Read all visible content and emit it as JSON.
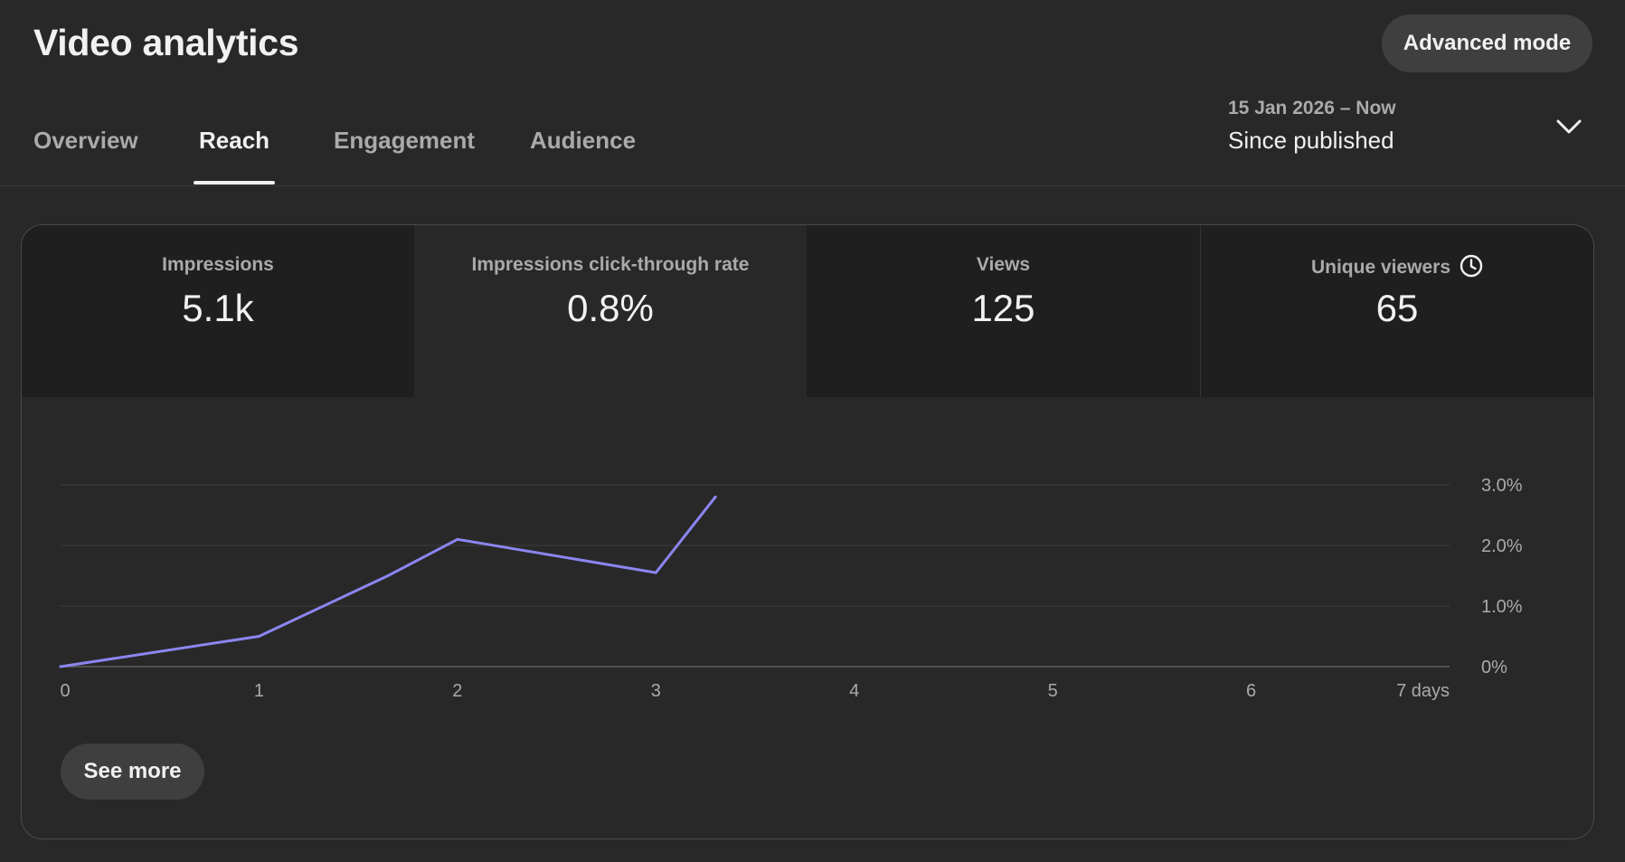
{
  "header": {
    "title": "Video analytics",
    "advanced_mode_label": "Advanced mode"
  },
  "tabs": [
    {
      "label": "Overview",
      "active": false
    },
    {
      "label": "Reach",
      "active": true
    },
    {
      "label": "Engagement",
      "active": false
    },
    {
      "label": "Audience",
      "active": false
    }
  ],
  "date_picker": {
    "range": "15 Jan 2026 – Now",
    "label": "Since published",
    "icon": "chevron-down-icon"
  },
  "metrics": [
    {
      "label": "Impressions",
      "value": "5.1k"
    },
    {
      "label": "Impressions click-through rate",
      "value": "0.8%"
    },
    {
      "label": "Views",
      "value": "125"
    },
    {
      "label": "Unique viewers",
      "value": "65",
      "icon": "clock-icon"
    }
  ],
  "see_more_label": "See more",
  "colors": {
    "background": "#282828",
    "line": "#8b86f0",
    "text": "#f1f1f1",
    "muted": "#aaaaaa"
  },
  "chart_data": {
    "type": "line",
    "title": "",
    "xlabel": "",
    "ylabel": "",
    "x": [
      0,
      1,
      1.65,
      2,
      3,
      3.3
    ],
    "series": [
      {
        "name": "Impressions click-through rate",
        "values": [
          0.0,
          0.5,
          1.5,
          2.1,
          1.55,
          2.8
        ]
      }
    ],
    "x_ticks": [
      "0",
      "1",
      "2",
      "3",
      "4",
      "5",
      "6",
      "7 days"
    ],
    "y_ticks": [
      "0%",
      "1.0%",
      "2.0%",
      "3.0%"
    ],
    "xlim": [
      0,
      7
    ],
    "ylim": [
      0,
      3
    ],
    "grid": true
  }
}
